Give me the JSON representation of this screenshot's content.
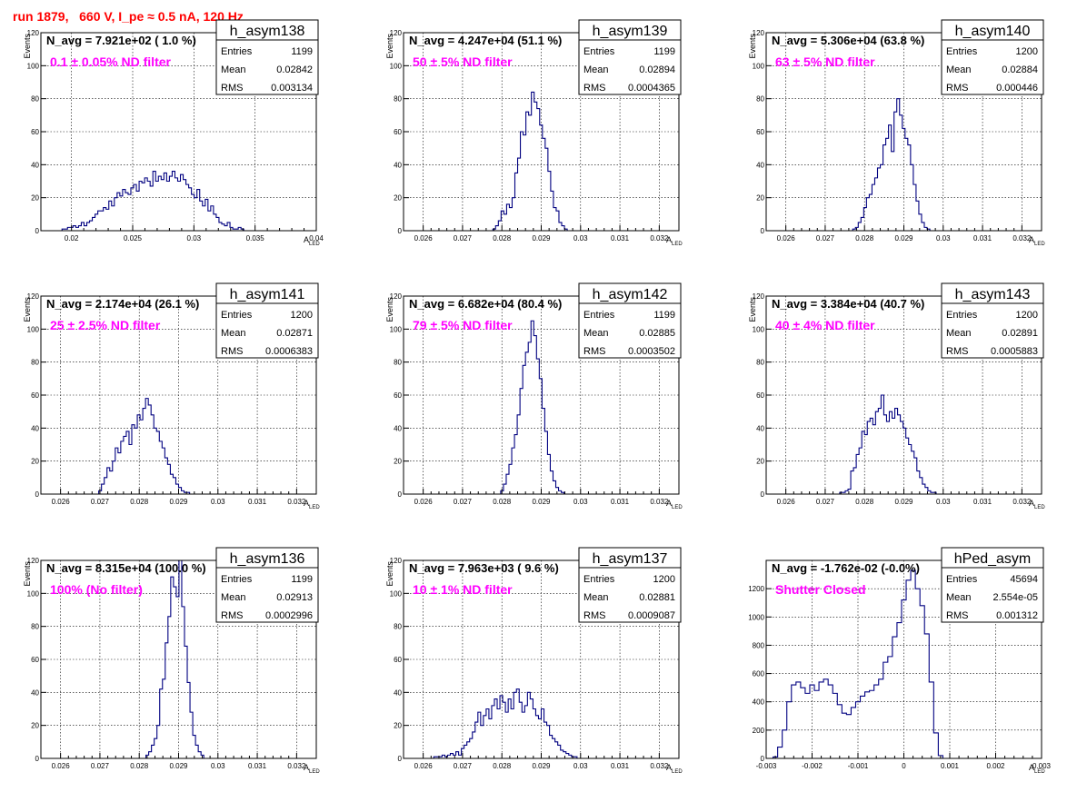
{
  "header": {
    "title": "run 1879,   660 V, I_pe ≈ 0.5 nA, 120 Hz"
  },
  "colors": {
    "histogram": "#000080",
    "filter_label": "#ff00ff",
    "title": "#ff0000"
  },
  "chart_data": [
    {
      "type": "bar",
      "name": "h_asym138",
      "navg": "N_avg = 7.921e+02 ( 1.0 %)",
      "filter": "0.1 ± 0.05% ND filter",
      "stats": {
        "Entries": "1199",
        "Mean": "0.02842",
        "RMS": "0.003134"
      },
      "xlabel": "A",
      "xlabel_sub": "LED",
      "ylabel": "Events",
      "xlim": [
        0.0175,
        0.04
      ],
      "ylim": [
        0,
        120
      ],
      "xticks": [
        0.02,
        0.025,
        0.03,
        0.035,
        0.04
      ],
      "xtick_labels": [
        "0.02",
        "0.025",
        "0.03",
        "0.035",
        "0.04"
      ],
      "yticks": [
        0,
        20,
        40,
        60,
        80,
        100,
        120
      ],
      "grid": true,
      "bins": {
        "x0": 0.019,
        "w": 0.000225,
        "values": [
          0,
          1,
          1,
          2,
          2,
          3,
          2,
          3,
          5,
          3,
          5,
          6,
          8,
          10,
          12,
          12,
          14,
          13,
          18,
          15,
          20,
          23,
          21,
          25,
          23,
          22,
          26,
          28,
          24,
          30,
          29,
          32,
          30,
          27,
          36,
          30,
          33,
          31,
          35,
          30,
          33,
          36,
          32,
          30,
          34,
          31,
          28,
          26,
          22,
          20,
          25,
          18,
          15,
          19,
          12,
          15,
          10,
          8,
          5,
          4,
          3,
          5,
          2,
          1,
          1,
          2,
          1,
          0,
          0,
          0
        ]
      }
    },
    {
      "type": "bar",
      "name": "h_asym139",
      "navg": "N_avg = 4.247e+04 (51.1 %)",
      "filter": "50 ± 5% ND filter",
      "stats": {
        "Entries": "1199",
        "Mean": "0.02894",
        "RMS": "0.0004365"
      },
      "xlabel": "A",
      "xlabel_sub": "LED",
      "ylabel": "Events",
      "xlim": [
        0.0255,
        0.0325
      ],
      "ylim": [
        0,
        120
      ],
      "xticks": [
        0.026,
        0.027,
        0.028,
        0.029,
        0.03,
        0.031,
        0.032
      ],
      "xtick_labels": [
        "0.026",
        "0.027",
        "0.028",
        "0.029",
        "0.03",
        "0.031",
        "0.032"
      ],
      "yticks": [
        0,
        20,
        40,
        60,
        80,
        100,
        120
      ],
      "grid": true,
      "bins": {
        "x0": 0.0277,
        "w": 7e-05,
        "values": [
          0,
          1,
          3,
          6,
          12,
          10,
          16,
          14,
          20,
          35,
          44,
          60,
          58,
          72,
          70,
          84,
          78,
          74,
          64,
          56,
          50,
          36,
          24,
          14,
          12,
          5,
          3,
          1,
          0
        ]
      }
    },
    {
      "type": "bar",
      "name": "h_asym140",
      "navg": "N_avg = 5.306e+04 (63.8 %)",
      "filter": "63 ± 5% ND filter",
      "stats": {
        "Entries": "1200",
        "Mean": "0.02884",
        "RMS": "0.000446"
      },
      "xlabel": "A",
      "xlabel_sub": "LED",
      "ylabel": "Events",
      "xlim": [
        0.0255,
        0.0325
      ],
      "ylim": [
        0,
        120
      ],
      "xticks": [
        0.026,
        0.027,
        0.028,
        0.029,
        0.03,
        0.031,
        0.032
      ],
      "xtick_labels": [
        "0.026",
        "0.027",
        "0.028",
        "0.029",
        "0.03",
        "0.031",
        "0.032"
      ],
      "yticks": [
        0,
        20,
        40,
        60,
        80,
        100,
        120
      ],
      "grid": true,
      "bins": {
        "x0": 0.0277,
        "w": 7e-05,
        "values": [
          1,
          2,
          5,
          8,
          14,
          20,
          22,
          28,
          32,
          38,
          40,
          52,
          56,
          64,
          48,
          72,
          80,
          70,
          62,
          56,
          52,
          40,
          28,
          18,
          10,
          5,
          2,
          1,
          0
        ]
      }
    },
    {
      "type": "bar",
      "name": "h_asym141",
      "navg": "N_avg = 2.174e+04 (26.1 %)",
      "filter": "25 ± 2.5% ND filter",
      "stats": {
        "Entries": "1200",
        "Mean": "0.02871",
        "RMS": "0.0006383"
      },
      "xlabel": "A",
      "xlabel_sub": "LED",
      "ylabel": "Events",
      "xlim": [
        0.0255,
        0.0325
      ],
      "ylim": [
        0,
        120
      ],
      "xticks": [
        0.026,
        0.027,
        0.028,
        0.029,
        0.03,
        0.031,
        0.032
      ],
      "xtick_labels": [
        "0.026",
        "0.027",
        "0.028",
        "0.029",
        "0.03",
        "0.031",
        "0.032"
      ],
      "yticks": [
        0,
        20,
        40,
        60,
        80,
        100,
        120
      ],
      "grid": true,
      "bins": {
        "x0": 0.0269,
        "w": 7e-05,
        "values": [
          0,
          2,
          6,
          10,
          16,
          14,
          20,
          28,
          25,
          32,
          35,
          38,
          30,
          42,
          40,
          48,
          45,
          52,
          58,
          54,
          48,
          40,
          38,
          32,
          28,
          22,
          18,
          12,
          10,
          6,
          4,
          2,
          1,
          1,
          0
        ]
      }
    },
    {
      "type": "bar",
      "name": "h_asym142",
      "navg": "N_avg = 6.682e+04 (80.4 %)",
      "filter": "79 ± 5% ND filter",
      "stats": {
        "Entries": "1199",
        "Mean": "0.02885",
        "RMS": "0.0003502"
      },
      "xlabel": "A",
      "xlabel_sub": "LED",
      "ylabel": "Events",
      "xlim": [
        0.0255,
        0.0325
      ],
      "ylim": [
        0,
        120
      ],
      "xticks": [
        0.026,
        0.027,
        0.028,
        0.029,
        0.03,
        0.031,
        0.032
      ],
      "xtick_labels": [
        "0.026",
        "0.027",
        "0.028",
        "0.029",
        "0.03",
        "0.031",
        "0.032"
      ],
      "yticks": [
        0,
        20,
        40,
        60,
        80,
        100,
        120
      ],
      "grid": true,
      "bins": {
        "x0": 0.0279,
        "w": 7e-05,
        "values": [
          0,
          2,
          6,
          12,
          18,
          28,
          36,
          48,
          64,
          78,
          86,
          92,
          105,
          96,
          82,
          70,
          52,
          38,
          24,
          14,
          8,
          4,
          2,
          1,
          0
        ]
      }
    },
    {
      "type": "bar",
      "name": "h_asym143",
      "navg": "N_avg = 3.384e+04 (40.7 %)",
      "filter": "40 ± 4% ND filter",
      "stats": {
        "Entries": "1200",
        "Mean": "0.02891",
        "RMS": "0.0005883"
      },
      "xlabel": "A",
      "xlabel_sub": "LED",
      "ylabel": "Events",
      "xlim": [
        0.0255,
        0.0325
      ],
      "ylim": [
        0,
        120
      ],
      "xticks": [
        0.026,
        0.027,
        0.028,
        0.029,
        0.03,
        0.031,
        0.032
      ],
      "xtick_labels": [
        "0.026",
        "0.027",
        "0.028",
        "0.029",
        "0.03",
        "0.031",
        "0.032"
      ],
      "yticks": [
        0,
        20,
        40,
        60,
        80,
        100,
        120
      ],
      "grid": true,
      "bins": {
        "x0": 0.0273,
        "w": 7e-05,
        "values": [
          0,
          1,
          1,
          2,
          3,
          14,
          16,
          24,
          28,
          38,
          36,
          44,
          46,
          42,
          50,
          52,
          60,
          48,
          44,
          50,
          46,
          52,
          48,
          44,
          40,
          34,
          30,
          26,
          22,
          14,
          10,
          6,
          4,
          2,
          1,
          1,
          0
        ]
      }
    },
    {
      "type": "bar",
      "name": "h_asym136",
      "navg": "N_avg = 8.315e+04 (100.0 %)",
      "filter": "100% (No filter)",
      "stats": {
        "Entries": "1199",
        "Mean": "0.02913",
        "RMS": "0.0002996"
      },
      "xlabel": "A",
      "xlabel_sub": "LED",
      "ylabel": "Events",
      "xlim": [
        0.0255,
        0.0325
      ],
      "ylim": [
        0,
        120
      ],
      "xticks": [
        0.026,
        0.027,
        0.028,
        0.029,
        0.03,
        0.031,
        0.032
      ],
      "xtick_labels": [
        "0.026",
        "0.027",
        "0.028",
        "0.029",
        "0.03",
        "0.031",
        "0.032"
      ],
      "yticks": [
        0,
        20,
        40,
        60,
        80,
        100,
        120
      ],
      "grid": true,
      "bins": {
        "x0": 0.0281,
        "w": 7e-05,
        "values": [
          0,
          2,
          4,
          8,
          12,
          20,
          42,
          48,
          70,
          86,
          110,
          104,
          98,
          124,
          92,
          68,
          46,
          28,
          14,
          8,
          4,
          2,
          0
        ]
      }
    },
    {
      "type": "bar",
      "name": "h_asym137",
      "navg": "N_avg = 7.963e+03 ( 9.6 %)",
      "filter": "10 ± 1% ND filter",
      "stats": {
        "Entries": "1200",
        "Mean": "0.02881",
        "RMS": "0.0009087"
      },
      "xlabel": "A",
      "xlabel_sub": "LED",
      "ylabel": "Events",
      "xlim": [
        0.0255,
        0.0325
      ],
      "ylim": [
        0,
        120
      ],
      "xticks": [
        0.026,
        0.027,
        0.028,
        0.029,
        0.03,
        0.031,
        0.032
      ],
      "xtick_labels": [
        "0.026",
        "0.027",
        "0.028",
        "0.029",
        "0.03",
        "0.031",
        "0.032"
      ],
      "yticks": [
        0,
        20,
        40,
        60,
        80,
        100,
        120
      ],
      "grid": true,
      "bins": {
        "x0": 0.0262,
        "w": 7e-05,
        "values": [
          0,
          1,
          1,
          1,
          2,
          1,
          2,
          3,
          2,
          4,
          2,
          6,
          8,
          10,
          12,
          16,
          22,
          28,
          20,
          26,
          30,
          24,
          32,
          36,
          30,
          38,
          34,
          28,
          36,
          30,
          40,
          42,
          34,
          28,
          32,
          40,
          36,
          30,
          26,
          24,
          30,
          22,
          20,
          14,
          12,
          10,
          8,
          5,
          4,
          3,
          2,
          1,
          1,
          0
        ]
      }
    },
    {
      "type": "bar",
      "name": "hPed_asym",
      "navg": "N_avg = -1.762e-02 (-0.0%)",
      "filter": "Shutter Closed",
      "stats": {
        "Entries": "45694",
        "Mean": "2.554e-05",
        "RMS": "0.001312"
      },
      "xlabel": "A",
      "xlabel_sub": "LED",
      "ylabel": "",
      "xlim": [
        -0.003,
        0.003
      ],
      "ylim": [
        0,
        1400
      ],
      "xticks": [
        -0.003,
        -0.002,
        -0.001,
        0,
        0.001,
        0.002,
        0.003
      ],
      "xtick_labels": [
        "-0.003",
        "-0.002",
        "-0.001",
        "0",
        "0.001",
        "0.002",
        "0.003"
      ],
      "yticks": [
        0,
        200,
        400,
        600,
        800,
        1000,
        1200
      ],
      "grid": true,
      "bins": {
        "x0": -0.00285,
        "w": 0.0001,
        "values": [
          10,
          80,
          200,
          400,
          520,
          540,
          500,
          460,
          520,
          480,
          540,
          560,
          520,
          460,
          380,
          320,
          310,
          360,
          400,
          440,
          470,
          480,
          520,
          560,
          680,
          720,
          860,
          960,
          1120,
          1260,
          1330,
          1200,
          1080,
          880,
          540,
          180,
          20,
          0
        ]
      }
    }
  ]
}
